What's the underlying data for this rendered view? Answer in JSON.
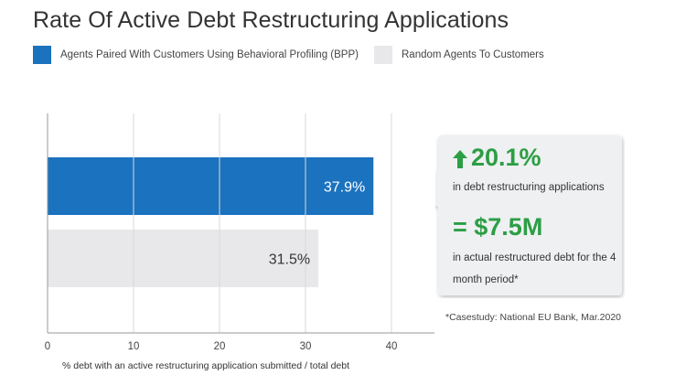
{
  "title": "Rate Of Active Debt Restructuring Applications",
  "colors": {
    "bpp": "#1b72be",
    "random": "#e8e8ea",
    "grid": "#d9d9d9",
    "axis": "#999999",
    "accent_green": "#2c9e45"
  },
  "legend": [
    {
      "label": "Agents Paired With Customers Using Behavioral Profiling (BPP)",
      "color": "#1b72be"
    },
    {
      "label": "Random Agents To Customers",
      "color": "#e8e8ea"
    }
  ],
  "chart_data": {
    "type": "bar",
    "orientation": "horizontal",
    "series": [
      {
        "name": "Agents Paired With Customers Using Behavioral Profiling (BPP)",
        "values": [
          37.9
        ],
        "label": "37.9%"
      },
      {
        "name": "Random Agents To Customers",
        "values": [
          31.5
        ],
        "label": "31.5%"
      }
    ],
    "xlabel": "% debt with an active restructuring application submitted / total debt",
    "xlim": [
      0,
      45
    ],
    "xticks": [
      0,
      10,
      20,
      30,
      40
    ],
    "grid": true
  },
  "callout": {
    "stat1_icon": "up-arrow-icon",
    "stat1_value": "20.1%",
    "stat1_desc": "in debt restructuring applications",
    "stat2_value": "= $7.5M",
    "stat2_desc": "in actual restructured debt for the 4 month period*"
  },
  "source_note": "*Casestudy: National EU Bank, Mar.2020"
}
